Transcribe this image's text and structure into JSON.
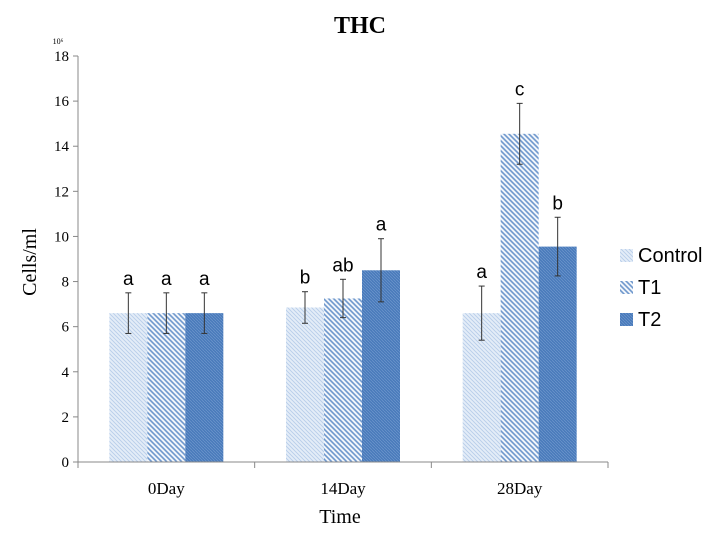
{
  "chart_data": {
    "type": "bar",
    "title": "THC",
    "xlabel": "Time",
    "ylabel": "Cells/ml",
    "y_multiplier": "10⁶",
    "ylim": [
      0,
      18
    ],
    "yticks": [
      0,
      2,
      4,
      6,
      8,
      10,
      12,
      14,
      16,
      18
    ],
    "categories": [
      "0Day",
      "14Day",
      "28Day"
    ],
    "grid": false,
    "legend_position": "right",
    "series": [
      {
        "name": "Control",
        "color": "#c6d9f1",
        "values": [
          6.6,
          6.85,
          6.6
        ],
        "errors": [
          0.9,
          0.7,
          1.2
        ],
        "labels": [
          "a",
          "b",
          "a"
        ]
      },
      {
        "name": "T1",
        "color": "#8eb4e3",
        "values": [
          6.6,
          7.25,
          14.55
        ],
        "errors": [
          0.9,
          0.85,
          1.35
        ],
        "labels": [
          "a",
          "ab",
          "c"
        ]
      },
      {
        "name": "T2",
        "color": "#4f81bd",
        "values": [
          6.6,
          8.5,
          9.55
        ],
        "errors": [
          0.9,
          1.4,
          1.3
        ],
        "labels": [
          "a",
          "a",
          "b"
        ]
      }
    ]
  }
}
